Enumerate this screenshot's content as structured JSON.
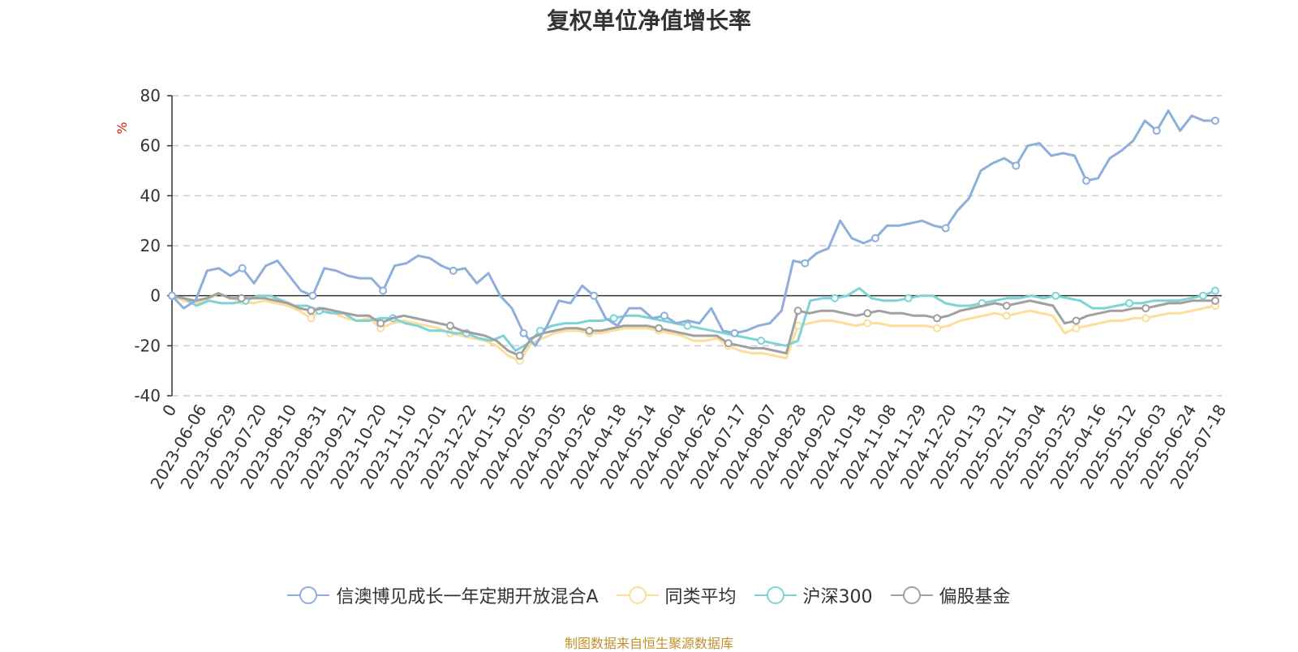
{
  "title": "复权单位净值增长率",
  "source": "制图数据来自恒生聚源数据库",
  "chart_data": {
    "type": "line",
    "title": "复权单位净值增长率",
    "ylabel": "%",
    "ylim": [
      -40,
      80
    ],
    "yticks": [
      -40,
      -20,
      0,
      20,
      40,
      60,
      80
    ],
    "grid": true,
    "legend": "bottom",
    "xtick_labels": [
      "0",
      "2023-06-06",
      "2023-06-29",
      "2023-07-20",
      "2023-08-10",
      "2023-08-31",
      "2023-09-21",
      "2023-10-20",
      "2023-11-10",
      "2023-12-01",
      "2023-12-22",
      "2024-01-15",
      "2024-02-05",
      "2024-03-05",
      "2024-03-26",
      "2024-04-18",
      "2024-05-14",
      "2024-06-04",
      "2024-06-26",
      "2024-07-17",
      "2024-08-07",
      "2024-08-28",
      "2024-09-20",
      "2024-10-18",
      "2024-11-08",
      "2024-11-29",
      "2024-12-20",
      "2025-01-13",
      "2025-02-11",
      "2025-03-04",
      "2025-03-25",
      "2025-04-16",
      "2025-05-12",
      "2025-06-03",
      "2025-06-24",
      "2025-07-18"
    ],
    "series": [
      {
        "name": "信澳博见成长一年定期开放混合A",
        "color": "#8eaedb",
        "values": [
          0,
          -5,
          -2,
          10,
          11,
          8,
          11,
          5,
          12,
          14,
          8,
          2,
          0,
          11,
          10,
          8,
          7,
          7,
          2,
          12,
          13,
          16,
          15,
          12,
          10,
          11,
          5,
          9,
          0,
          -5,
          -15,
          -20,
          -12,
          -2,
          -3,
          4,
          0,
          -9,
          -12,
          -5,
          -5,
          -9,
          -8,
          -11,
          -10,
          -11,
          -5,
          -14,
          -15,
          -14,
          -12,
          -11,
          -6,
          14,
          13,
          17,
          19,
          30,
          23,
          21,
          23,
          28,
          28,
          29,
          30,
          28,
          27,
          34,
          39,
          50,
          53,
          55,
          52,
          60,
          61,
          56,
          57,
          56,
          46,
          47,
          55,
          58,
          62,
          70,
          66,
          74,
          66,
          72,
          70,
          70
        ]
      },
      {
        "name": "同类平均",
        "color": "#fddd9a",
        "values": [
          0,
          -2,
          -3,
          -2,
          1,
          -1,
          -2,
          -3,
          -2,
          -3,
          -4,
          -6,
          -9,
          -5,
          -7,
          -9,
          -10,
          -9,
          -13,
          -11,
          -10,
          -11,
          -12,
          -13,
          -15,
          -16,
          -17,
          -18,
          -20,
          -24,
          -26,
          -19,
          -17,
          -15,
          -14,
          -14,
          -15,
          -15,
          -14,
          -13,
          -13,
          -13,
          -14,
          -15,
          -16,
          -18,
          -18,
          -17,
          -20,
          -22,
          -23,
          -23,
          -24,
          -25,
          -12,
          -11,
          -10,
          -10,
          -11,
          -12,
          -11,
          -11,
          -12,
          -12,
          -12,
          -12,
          -13,
          -12,
          -10,
          -9,
          -8,
          -7,
          -8,
          -7,
          -6,
          -7,
          -8,
          -15,
          -13,
          -12,
          -11,
          -10,
          -10,
          -9,
          -9,
          -8,
          -7,
          -7,
          -6,
          -5,
          -4
        ]
      },
      {
        "name": "沪深300",
        "color": "#7dd4d7",
        "values": [
          0,
          -1,
          -4,
          -2,
          -3,
          -3,
          -2,
          0,
          0,
          -2,
          -4,
          -4,
          -6,
          -7,
          -7,
          -10,
          -10,
          -9,
          -9,
          -11,
          -12,
          -14,
          -14,
          -15,
          -15,
          -17,
          -18,
          -16,
          -22,
          -19,
          -14,
          -12,
          -11,
          -11,
          -10,
          -10,
          -9,
          -8,
          -8,
          -9,
          -10,
          -11,
          -12,
          -13,
          -14,
          -15,
          -16,
          -17,
          -18,
          -19,
          -20,
          -18,
          -2,
          -1,
          -1,
          0,
          3,
          -1,
          -2,
          -2,
          -1,
          0,
          0,
          -3,
          -4,
          -4,
          -3,
          -2,
          -1,
          -1,
          0,
          -1,
          0,
          -1,
          -2,
          -5,
          -5,
          -4,
          -3,
          -3,
          -2,
          -2,
          -2,
          -1,
          0,
          2
        ]
      },
      {
        "name": "偏股基金",
        "color": "#a0a0a0",
        "values": [
          0,
          -1,
          -2,
          -1,
          1,
          -1,
          -1,
          -1,
          -1,
          -2,
          -3,
          -5,
          -6,
          -5,
          -6,
          -7,
          -8,
          -8,
          -11,
          -9,
          -8,
          -9,
          -10,
          -11,
          -12,
          -14,
          -15,
          -16,
          -18,
          -22,
          -24,
          -17,
          -15,
          -14,
          -13,
          -13,
          -14,
          -14,
          -13,
          -12,
          -12,
          -12,
          -13,
          -14,
          -15,
          -16,
          -16,
          -16,
          -19,
          -20,
          -21,
          -21,
          -22,
          -23,
          -6,
          -7,
          -6,
          -6,
          -7,
          -8,
          -7,
          -6,
          -7,
          -7,
          -8,
          -8,
          -9,
          -8,
          -6,
          -5,
          -4,
          -3,
          -4,
          -3,
          -2,
          -3,
          -4,
          -11,
          -10,
          -8,
          -7,
          -6,
          -6,
          -5,
          -5,
          -4,
          -3,
          -3,
          -2,
          -2,
          -2
        ]
      }
    ]
  }
}
